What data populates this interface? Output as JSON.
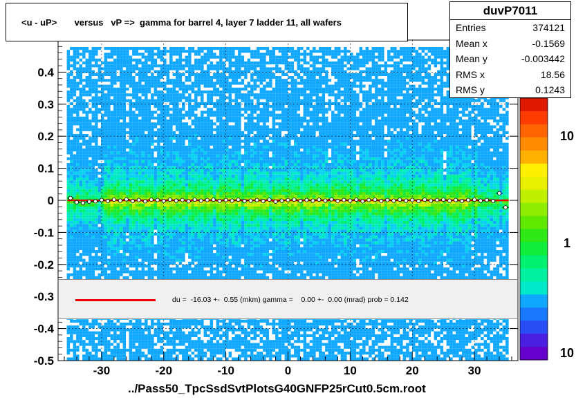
{
  "chart_data": {
    "type": "heatmap",
    "title": "<u - uP>       versus   vP =>  gamma for barrel 4, layer 7 ladder 11, all wafers",
    "xlabel": "../Pass50_TpcSsdSvtPlotsG40GNFP25rCut0.5cm.root",
    "ylabel": "",
    "xlim": [
      -37,
      37
    ],
    "ylim": [
      -0.5,
      0.5
    ],
    "x_ticks": [
      -30,
      -20,
      -10,
      0,
      10,
      20,
      30
    ],
    "y_ticks": [
      -0.5,
      -0.4,
      -0.3,
      -0.2,
      -0.1,
      0,
      0.1,
      0.2,
      0.3,
      0.4
    ],
    "y_tick_labels": [
      "-0.5",
      "-0.4",
      "-0.3",
      "-0.2",
      "-0.1",
      "0",
      "0.1",
      "0.2",
      "0.3",
      "0.4"
    ],
    "grid": true,
    "colorbar": {
      "scale": "log",
      "labels": [
        "10",
        "1",
        "10"
      ]
    },
    "stats": {
      "name": "duvP7011",
      "rows": [
        {
          "key": "Entries",
          "value": "374121"
        },
        {
          "key": "Mean x",
          "value": "-0.1569"
        },
        {
          "key": "Mean y",
          "value": "-0.003442"
        },
        {
          "key": "RMS x",
          "value": "18.56"
        },
        {
          "key": "RMS y",
          "value": "0.1243"
        }
      ]
    },
    "fit_legend": "du =  -16.03 +-  0.55 (mkm) gamma =    0.00 +-  0.00 (mrad) prob = 0.142",
    "profile": {
      "x": [
        -35,
        -34,
        -33,
        -32,
        -31,
        -30,
        -29,
        -28,
        -27,
        -26,
        -25,
        -24,
        -23,
        -22,
        -21,
        -20,
        -19,
        -18,
        -17,
        -16,
        -15,
        -14,
        -13,
        -12,
        -11,
        -10,
        -9,
        -8,
        -7,
        -6,
        -5,
        -4,
        -3,
        -2,
        -1,
        0,
        1,
        2,
        3,
        4,
        5,
        6,
        7,
        8,
        9,
        10,
        11,
        12,
        13,
        14,
        15,
        16,
        17,
        18,
        19,
        20,
        21,
        22,
        23,
        24,
        25,
        26,
        27,
        28,
        29,
        30,
        31,
        32,
        33,
        34,
        35
      ],
      "y": [
        0.007,
        -0.006,
        -0.008,
        -0.004,
        -0.003,
        0.001,
        -0.002,
        0.002,
        -0.001,
        0.003,
        -0.002,
        0.001,
        -0.003,
        0.002,
        0.001,
        -0.002,
        0.002,
        -0.001,
        0.001,
        -0.003,
        0.002,
        -0.001,
        0.001,
        0.002,
        -0.002,
        0.001,
        -0.001,
        0.002,
        -0.002,
        -0.001,
        0.001,
        -0.002,
        0.002,
        -0.004,
        -0.001,
        0.001,
        0.002,
        -0.002,
        0.001,
        -0.001,
        0.002,
        -0.001,
        0.003,
        -0.002,
        0.001,
        -0.001,
        0.002,
        -0.003,
        0.001,
        0.002,
        -0.002,
        0.001,
        -0.001,
        0.002,
        -0.001,
        0.001,
        -0.002,
        0.002,
        -0.001,
        0.001,
        0.002,
        -0.001,
        0.001,
        -0.002,
        0.001,
        0.002,
        -0.001,
        0.001,
        -0.002,
        0.022,
        -0.022
      ]
    },
    "fit_line_y": 0.0
  }
}
